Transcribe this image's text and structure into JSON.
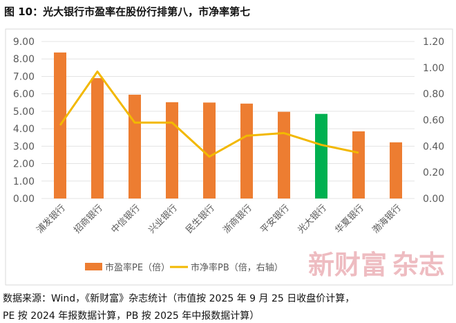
{
  "chart_data": {
    "type": "bar",
    "title": "图 10：光大银行市盈率在股份行排第八，市净率第七",
    "categories": [
      "浦发银行",
      "招商银行",
      "中信银行",
      "兴业银行",
      "民生银行",
      "浙商银行",
      "平安银行",
      "光大银行",
      "华夏银行",
      "渤海银行"
    ],
    "series": [
      {
        "name": "市盈率PE（倍）",
        "type": "bar",
        "axis": "left",
        "color": "#ED7D31",
        "highlight_color": "#00B050",
        "highlight_category": "光大银行",
        "values": [
          8.37,
          6.9,
          5.95,
          5.52,
          5.5,
          5.44,
          4.97,
          4.85,
          3.85,
          3.22
        ]
      },
      {
        "name": "市净率PB（倍，右轴）",
        "type": "line",
        "axis": "right",
        "color": "#F2B800",
        "values": [
          0.56,
          0.97,
          0.58,
          0.58,
          0.32,
          0.48,
          0.5,
          0.41,
          0.35,
          null
        ]
      }
    ],
    "y_left": {
      "ylim": [
        0,
        9
      ],
      "ticks": [
        "0.00",
        "1.00",
        "2.00",
        "3.00",
        "4.00",
        "5.00",
        "6.00",
        "7.00",
        "8.00",
        "9.00"
      ]
    },
    "y_right": {
      "ylim": [
        0,
        1.2
      ],
      "ticks": [
        "0.00",
        "0.20",
        "0.40",
        "0.60",
        "0.80",
        "1.00",
        "1.20"
      ]
    },
    "grid": true,
    "legend": "bottom"
  },
  "watermark": [
    "新财富",
    "杂志"
  ],
  "caption": [
    "数据来源：Wind，《新财富》杂志统计（市值按 2025 年 9 月 25 日收盘价计算，",
    "PE 按 2024 年报数据计算，PB 按 2025 年中报数据计算）"
  ]
}
